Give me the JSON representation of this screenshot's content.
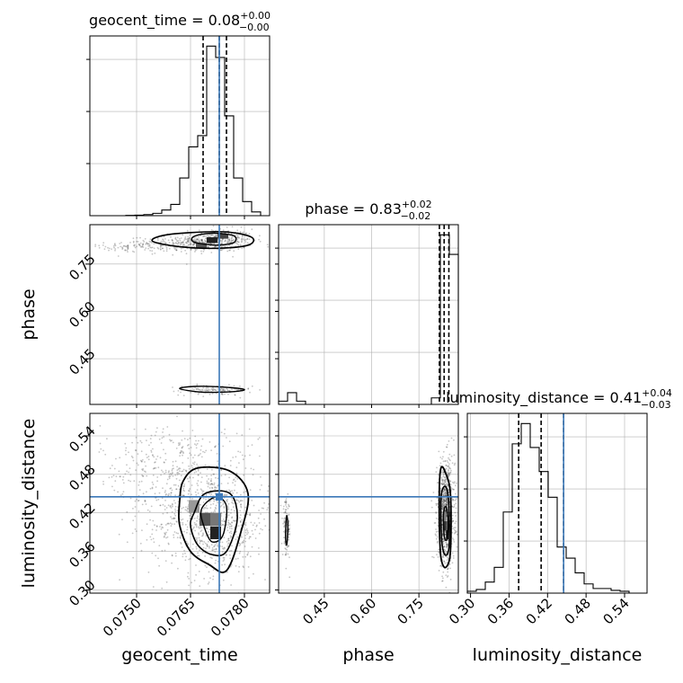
{
  "chart_data": {
    "type": "corner",
    "parameters": [
      "geocent_time",
      "phase",
      "luminosity_distance"
    ],
    "truth": {
      "geocent_time": 0.0773,
      "phase": null,
      "luminosity_distance": 0.445
    },
    "titles": [
      {
        "name": "geocent_time",
        "main": "geocent_time = 0.08",
        "sup": "+0.00",
        "sub": "−0.00"
      },
      {
        "name": "phase",
        "main": "phase = 0.83",
        "sup": "+0.02",
        "sub": "−0.02"
      },
      {
        "name": "luminosity_distance",
        "main": "luminosity_distance = 0.41",
        "sup": "+0.04",
        "sub": "−0.03"
      }
    ],
    "axes": {
      "geocent_time": {
        "range": [
          0.0737,
          0.0787
        ],
        "ticks": [
          "0.0750",
          "0.0765",
          "0.0780"
        ],
        "tick_values": [
          0.075,
          0.0765,
          0.078
        ]
      },
      "phase": {
        "range": [
          0.305,
          0.875
        ],
        "ticks": [
          "0.45",
          "0.60",
          "0.75"
        ],
        "tick_values": [
          0.45,
          0.6,
          0.75
        ]
      },
      "luminosity_distance": {
        "range": [
          0.295,
          0.575
        ],
        "ticks": [
          "0.30",
          "0.36",
          "0.42",
          "0.48",
          "0.54"
        ],
        "tick_values": [
          0.3,
          0.36,
          0.42,
          0.48,
          0.54
        ]
      }
    },
    "quantile_lines": {
      "geocent_time": [
        0.07685,
        0.0773,
        0.0775
      ],
      "phase": [
        0.815,
        0.83,
        0.845
      ],
      "luminosity_distance": [
        0.375,
        0.41,
        0.445
      ]
    },
    "histograms": {
      "geocent_time": {
        "edges": [
          0.0737,
          0.07395,
          0.0742,
          0.07445,
          0.0747,
          0.07495,
          0.0752,
          0.07545,
          0.0757,
          0.07595,
          0.0762,
          0.07645,
          0.0767,
          0.07695,
          0.0772,
          0.07745,
          0.0777,
          0.07795,
          0.0782,
          0.07845,
          0.0787
        ],
        "counts": [
          0,
          0,
          0,
          0,
          0.3,
          0.6,
          1.2,
          2.5,
          6,
          12,
          40,
          73,
          85,
          180,
          168,
          106,
          40,
          15,
          4,
          0
        ]
      },
      "phase": {
        "edges": [
          0.305,
          0.3335,
          0.362,
          0.3905,
          0.419,
          0.4475,
          0.476,
          0.5045,
          0.533,
          0.5615,
          0.59,
          0.6185,
          0.647,
          0.6755,
          0.704,
          0.7325,
          0.761,
          0.7895,
          0.818,
          0.8465,
          0.875
        ],
        "counts": [
          5,
          18,
          5,
          0,
          0,
          0,
          0,
          0,
          0,
          0,
          0,
          0,
          0,
          0,
          0,
          0,
          0,
          10,
          260,
          230
        ]
      },
      "luminosity_distance": {
        "edges": [
          0.295,
          0.309,
          0.323,
          0.337,
          0.351,
          0.365,
          0.379,
          0.393,
          0.407,
          0.421,
          0.435,
          0.449,
          0.463,
          0.477,
          0.491,
          0.505,
          0.519,
          0.533,
          0.547,
          0.561,
          0.575
        ],
        "counts": [
          2,
          4,
          12,
          28,
          88,
          162,
          184,
          158,
          132,
          104,
          50,
          38,
          22,
          10,
          5,
          5,
          3,
          2,
          0,
          0
        ]
      }
    },
    "pair_plots": [
      {
        "x": "geocent_time",
        "y": "phase",
        "clusters": [
          {
            "cx": 0.0772,
            "cy": 0.825,
            "sx": 0.00052,
            "sy": 0.018,
            "n": 420
          },
          {
            "cx": 0.076,
            "cy": 0.812,
            "sx": 0.0006,
            "sy": 0.012,
            "n": 160
          },
          {
            "cx": 0.0748,
            "cy": 0.806,
            "sx": 0.0006,
            "sy": 0.008,
            "n": 70
          },
          {
            "cx": 0.0772,
            "cy": 0.35,
            "sx": 0.0005,
            "sy": 0.008,
            "n": 130
          }
        ],
        "dense_cells": [
          {
            "x": 0.0771,
            "y": 0.826,
            "w": 0.0003,
            "h": 0.018,
            "shade": "#222222"
          },
          {
            "x": 0.0774,
            "y": 0.838,
            "w": 0.0003,
            "h": 0.015,
            "shade": "#444444"
          },
          {
            "x": 0.0768,
            "y": 0.809,
            "w": 0.0003,
            "h": 0.015,
            "shade": "#555555"
          }
        ],
        "contours": [
          {
            "points": [
              [
                0.07545,
                0.822
              ],
              [
                0.0762,
                0.805
              ],
              [
                0.0772,
                0.8
              ],
              [
                0.0781,
                0.81
              ],
              [
                0.0782,
                0.835
              ],
              [
                0.0775,
                0.852
              ],
              [
                0.0765,
                0.85
              ],
              [
                0.0757,
                0.84
              ]
            ],
            "stroke": 1.6
          },
          {
            "points": [
              [
                0.0766,
                0.82
              ],
              [
                0.0772,
                0.81
              ],
              [
                0.0777,
                0.818
              ],
              [
                0.0777,
                0.84
              ],
              [
                0.0771,
                0.848
              ],
              [
                0.0766,
                0.838
              ]
            ],
            "stroke": 1.4
          },
          {
            "points": [
              [
                0.0762,
                0.355
              ],
              [
                0.0768,
                0.344
              ],
              [
                0.0776,
                0.345
              ],
              [
                0.078,
                0.352
              ],
              [
                0.0774,
                0.36
              ],
              [
                0.0766,
                0.362
              ]
            ],
            "stroke": 1.4
          }
        ]
      },
      {
        "x": "geocent_time",
        "y": "luminosity_distance",
        "clusters": [
          {
            "cx": 0.0771,
            "cy": 0.4,
            "sx": 0.0008,
            "sy": 0.04,
            "n": 650
          },
          {
            "cx": 0.0765,
            "cy": 0.46,
            "sx": 0.001,
            "sy": 0.05,
            "n": 350
          },
          {
            "cx": 0.0758,
            "cy": 0.5,
            "sx": 0.0009,
            "sy": 0.03,
            "n": 180
          }
        ],
        "dense_cells": [
          {
            "x": 0.0772,
            "y": 0.389,
            "w": 0.0003,
            "h": 0.02,
            "shade": "#222222"
          },
          {
            "x": 0.0769,
            "y": 0.41,
            "w": 0.0003,
            "h": 0.02,
            "shade": "#555555"
          },
          {
            "x": 0.0772,
            "y": 0.41,
            "w": 0.0003,
            "h": 0.02,
            "shade": "#777777"
          },
          {
            "x": 0.0766,
            "y": 0.43,
            "w": 0.0003,
            "h": 0.02,
            "shade": "#999999"
          }
        ],
        "contours": [
          {
            "points": [
              [
                0.0763,
                0.47
              ],
              [
                0.0767,
                0.49
              ],
              [
                0.0776,
                0.485
              ],
              [
                0.0781,
                0.45
              ],
              [
                0.0779,
                0.39
              ],
              [
                0.0775,
                0.33
              ],
              [
                0.077,
                0.34
              ],
              [
                0.0765,
                0.36
              ],
              [
                0.0762,
                0.4
              ],
              [
                0.0762,
                0.44
              ]
            ],
            "stroke": 1.8
          },
          {
            "points": [
              [
                0.0766,
                0.42
              ],
              [
                0.0769,
                0.45
              ],
              [
                0.0776,
                0.45
              ],
              [
                0.0778,
                0.41
              ],
              [
                0.0775,
                0.36
              ],
              [
                0.0771,
                0.355
              ],
              [
                0.0767,
                0.37
              ],
              [
                0.0765,
                0.4
              ]
            ],
            "stroke": 1.6
          },
          {
            "points": [
              [
                0.0768,
                0.425
              ],
              [
                0.0772,
                0.445
              ],
              [
                0.0775,
                0.43
              ],
              [
                0.0774,
                0.385
              ],
              [
                0.0771,
                0.375
              ],
              [
                0.0769,
                0.395
              ]
            ],
            "stroke": 1.4
          }
        ]
      },
      {
        "x": "phase",
        "y": "luminosity_distance",
        "clusters": [
          {
            "cx": 0.835,
            "cy": 0.42,
            "sx": 0.014,
            "sy": 0.04,
            "n": 900
          },
          {
            "cx": 0.33,
            "cy": 0.395,
            "sx": 0.006,
            "sy": 0.022,
            "n": 120
          }
        ],
        "dense_cells": [
          {
            "x": 0.84,
            "y": 0.386,
            "w": 0.008,
            "h": 0.014,
            "shade": "#111111"
          },
          {
            "x": 0.832,
            "y": 0.4,
            "w": 0.008,
            "h": 0.014,
            "shade": "#333333"
          },
          {
            "x": 0.84,
            "y": 0.4,
            "w": 0.008,
            "h": 0.014,
            "shade": "#555555"
          },
          {
            "x": 0.832,
            "y": 0.414,
            "w": 0.008,
            "h": 0.014,
            "shade": "#777777"
          }
        ],
        "contours": [
          {
            "points": [
              [
                0.815,
                0.46
              ],
              [
                0.82,
                0.49
              ],
              [
                0.832,
                0.485
              ],
              [
                0.85,
                0.45
              ],
              [
                0.85,
                0.36
              ],
              [
                0.835,
                0.335
              ],
              [
                0.82,
                0.35
              ],
              [
                0.815,
                0.4
              ]
            ],
            "stroke": 1.8
          },
          {
            "points": [
              [
                0.82,
                0.44
              ],
              [
                0.828,
                0.46
              ],
              [
                0.84,
                0.455
              ],
              [
                0.846,
                0.42
              ],
              [
                0.845,
                0.365
              ],
              [
                0.832,
                0.355
              ],
              [
                0.822,
                0.38
              ]
            ],
            "stroke": 1.6
          },
          {
            "points": [
              [
                0.828,
                0.42
              ],
              [
                0.836,
                0.43
              ],
              [
                0.843,
                0.405
              ],
              [
                0.84,
                0.38
              ],
              [
                0.832,
                0.38
              ],
              [
                0.828,
                0.4
              ]
            ],
            "stroke": 1.4
          },
          {
            "points": [
              [
                0.327,
                0.385
              ],
              [
                0.33,
                0.415
              ],
              [
                0.334,
                0.405
              ],
              [
                0.333,
                0.38
              ],
              [
                0.33,
                0.37
              ]
            ],
            "stroke": 1.4
          }
        ]
      }
    ],
    "colors": {
      "truth": "#3b78b8",
      "hist": "#000000",
      "grid": "#b0b0b0",
      "scatter": "#333333"
    }
  }
}
